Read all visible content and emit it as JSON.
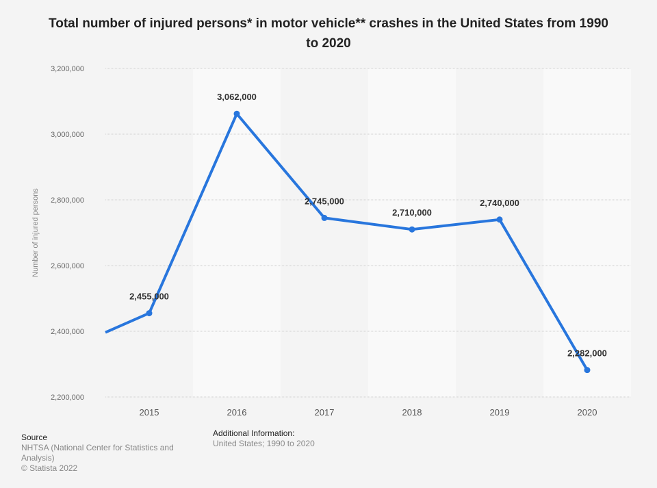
{
  "chart_data": {
    "type": "line",
    "title": "Total number of injured persons* in motor vehicle** crashes in the United States from 1990 to 2020",
    "ylabel": "Number of injured persons",
    "xlabel": "",
    "categories": [
      "2015",
      "2016",
      "2017",
      "2018",
      "2019",
      "2020"
    ],
    "values": [
      2455000,
      3062000,
      2745000,
      2710000,
      2740000,
      2282000
    ],
    "data_labels": [
      "2,455,000",
      "3,062,000",
      "2,745,000",
      "2,710,000",
      "2,740,000",
      "2,282,000"
    ],
    "previous_point": {
      "x": "2014",
      "value": 2338000
    },
    "ylim": [
      2200000,
      3200000
    ],
    "yticks": [
      "2,200,000",
      "2,400,000",
      "2,600,000",
      "2,800,000",
      "3,000,000",
      "3,200,000"
    ],
    "grid": true,
    "legend": "none",
    "line_color": "#2876dd"
  },
  "footer": {
    "source_heading": "Source",
    "source_text": "NHTSA (National Center for Statistics and Analysis)",
    "copyright": "© Statista 2022",
    "additional_heading": "Additional Information:",
    "additional_text": "United States; 1990 to 2020"
  }
}
